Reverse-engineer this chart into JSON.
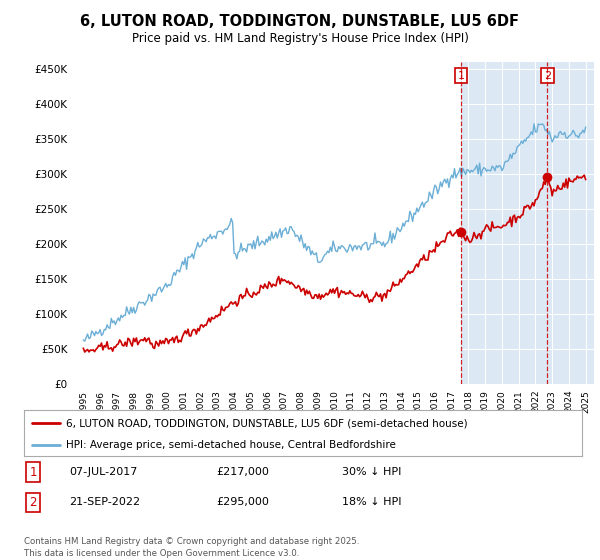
{
  "title": "6, LUTON ROAD, TODDINGTON, DUNSTABLE, LU5 6DF",
  "subtitle": "Price paid vs. HM Land Registry's House Price Index (HPI)",
  "background_color": "#ffffff",
  "plot_bg_color": "#dce9f5",
  "plot_bg_left_color": "#ffffff",
  "legend_line1": "6, LUTON ROAD, TODDINGTON, DUNSTABLE, LU5 6DF (semi-detached house)",
  "legend_line2": "HPI: Average price, semi-detached house, Central Bedfordshire",
  "sale1_date": "07-JUL-2017",
  "sale1_price": "£217,000",
  "sale1_hpi": "30% ↓ HPI",
  "sale2_date": "21-SEP-2022",
  "sale2_price": "£295,000",
  "sale2_hpi": "18% ↓ HPI",
  "footer": "Contains HM Land Registry data © Crown copyright and database right 2025.\nThis data is licensed under the Open Government Licence v3.0.",
  "hpi_color": "#6baed6",
  "price_color": "#cc0000",
  "sale1_x": 2017.55,
  "sale2_x": 2022.72,
  "sale1_price_val": 217000,
  "sale2_price_val": 295000,
  "dashed_line_color": "#cc0000",
  "marker_color": "#cc0000",
  "xmin": 1994.5,
  "xmax": 2025.5,
  "ymin": 0,
  "ymax": 460000
}
